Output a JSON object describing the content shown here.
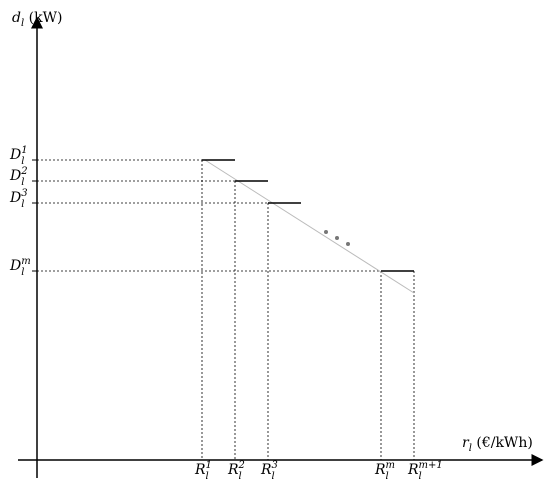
{
  "axes": {
    "y_label": {
      "base": "d",
      "sub": "l",
      "rest": " (kW)"
    },
    "x_label": {
      "base": "r",
      "sub": "l",
      "rest": " (€/kWh)"
    }
  },
  "demand_levels": [
    {
      "base": "D",
      "sub": "l",
      "sup": "1"
    },
    {
      "base": "D",
      "sub": "l",
      "sup": "2"
    },
    {
      "base": "D",
      "sub": "l",
      "sup": "3"
    },
    {
      "base": "D",
      "sub": "l",
      "sup": "m"
    }
  ],
  "price_thresholds": [
    {
      "base": "R",
      "sub": "l",
      "sup": "1"
    },
    {
      "base": "R",
      "sub": "l",
      "sup": "2"
    },
    {
      "base": "R",
      "sub": "l",
      "sup": "3"
    },
    {
      "base": "R",
      "sub": "l",
      "sup": "m"
    },
    {
      "base": "R",
      "sub": "l",
      "sup": "m+1"
    }
  ]
}
